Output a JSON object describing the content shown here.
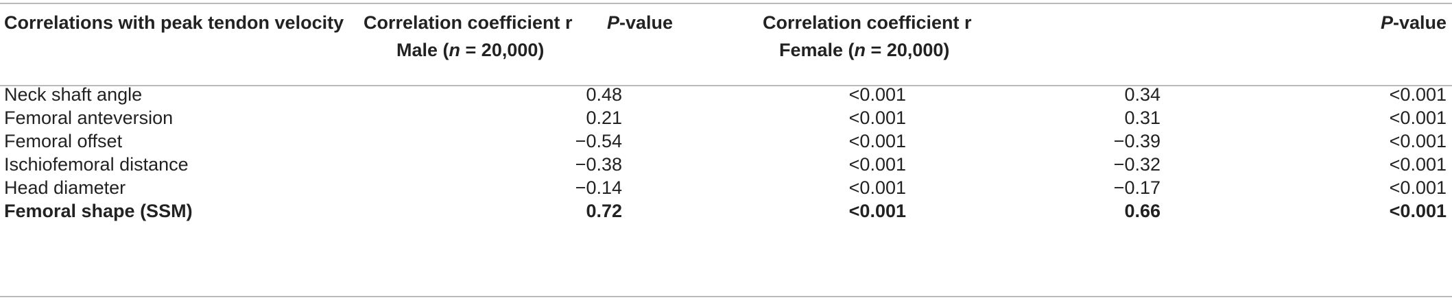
{
  "table": {
    "headers": {
      "col0": "Correlations with peak tendon velocity",
      "col1_line1": "Correlation coefficient r",
      "col1_line2_prefix": "Male (",
      "col1_line2_n": "n",
      "col1_line2_suffix": " = 20,000)",
      "col2_p": "P",
      "col2_rest": "-value",
      "col3_line1": "Correlation coefficient r",
      "col3_line2_prefix": "Female (",
      "col3_line2_n": "n",
      "col3_line2_suffix": " = 20,000)",
      "col4_p": "P",
      "col4_rest": "-value"
    },
    "rows": [
      {
        "label": "Neck shaft angle",
        "male_r": "0.48",
        "male_p": "<0.001",
        "female_r": "0.34",
        "female_p": "<0.001"
      },
      {
        "label": "Femoral anteversion",
        "male_r": "0.21",
        "male_p": "<0.001",
        "female_r": "0.31",
        "female_p": "<0.001"
      },
      {
        "label": "Femoral offset",
        "male_r": "−0.54",
        "male_p": "<0.001",
        "female_r": "−0.39",
        "female_p": "<0.001"
      },
      {
        "label": "Ischiofemoral distance",
        "male_r": "−0.38",
        "male_p": "<0.001",
        "female_r": "−0.32",
        "female_p": "<0.001"
      },
      {
        "label": "Head diameter",
        "male_r": "−0.14",
        "male_p": "<0.001",
        "female_r": "−0.17",
        "female_p": "<0.001"
      },
      {
        "label": "Femoral shape (SSM)",
        "male_r": "0.72",
        "male_p": "<0.001",
        "female_r": "0.66",
        "female_p": "<0.001"
      }
    ]
  }
}
